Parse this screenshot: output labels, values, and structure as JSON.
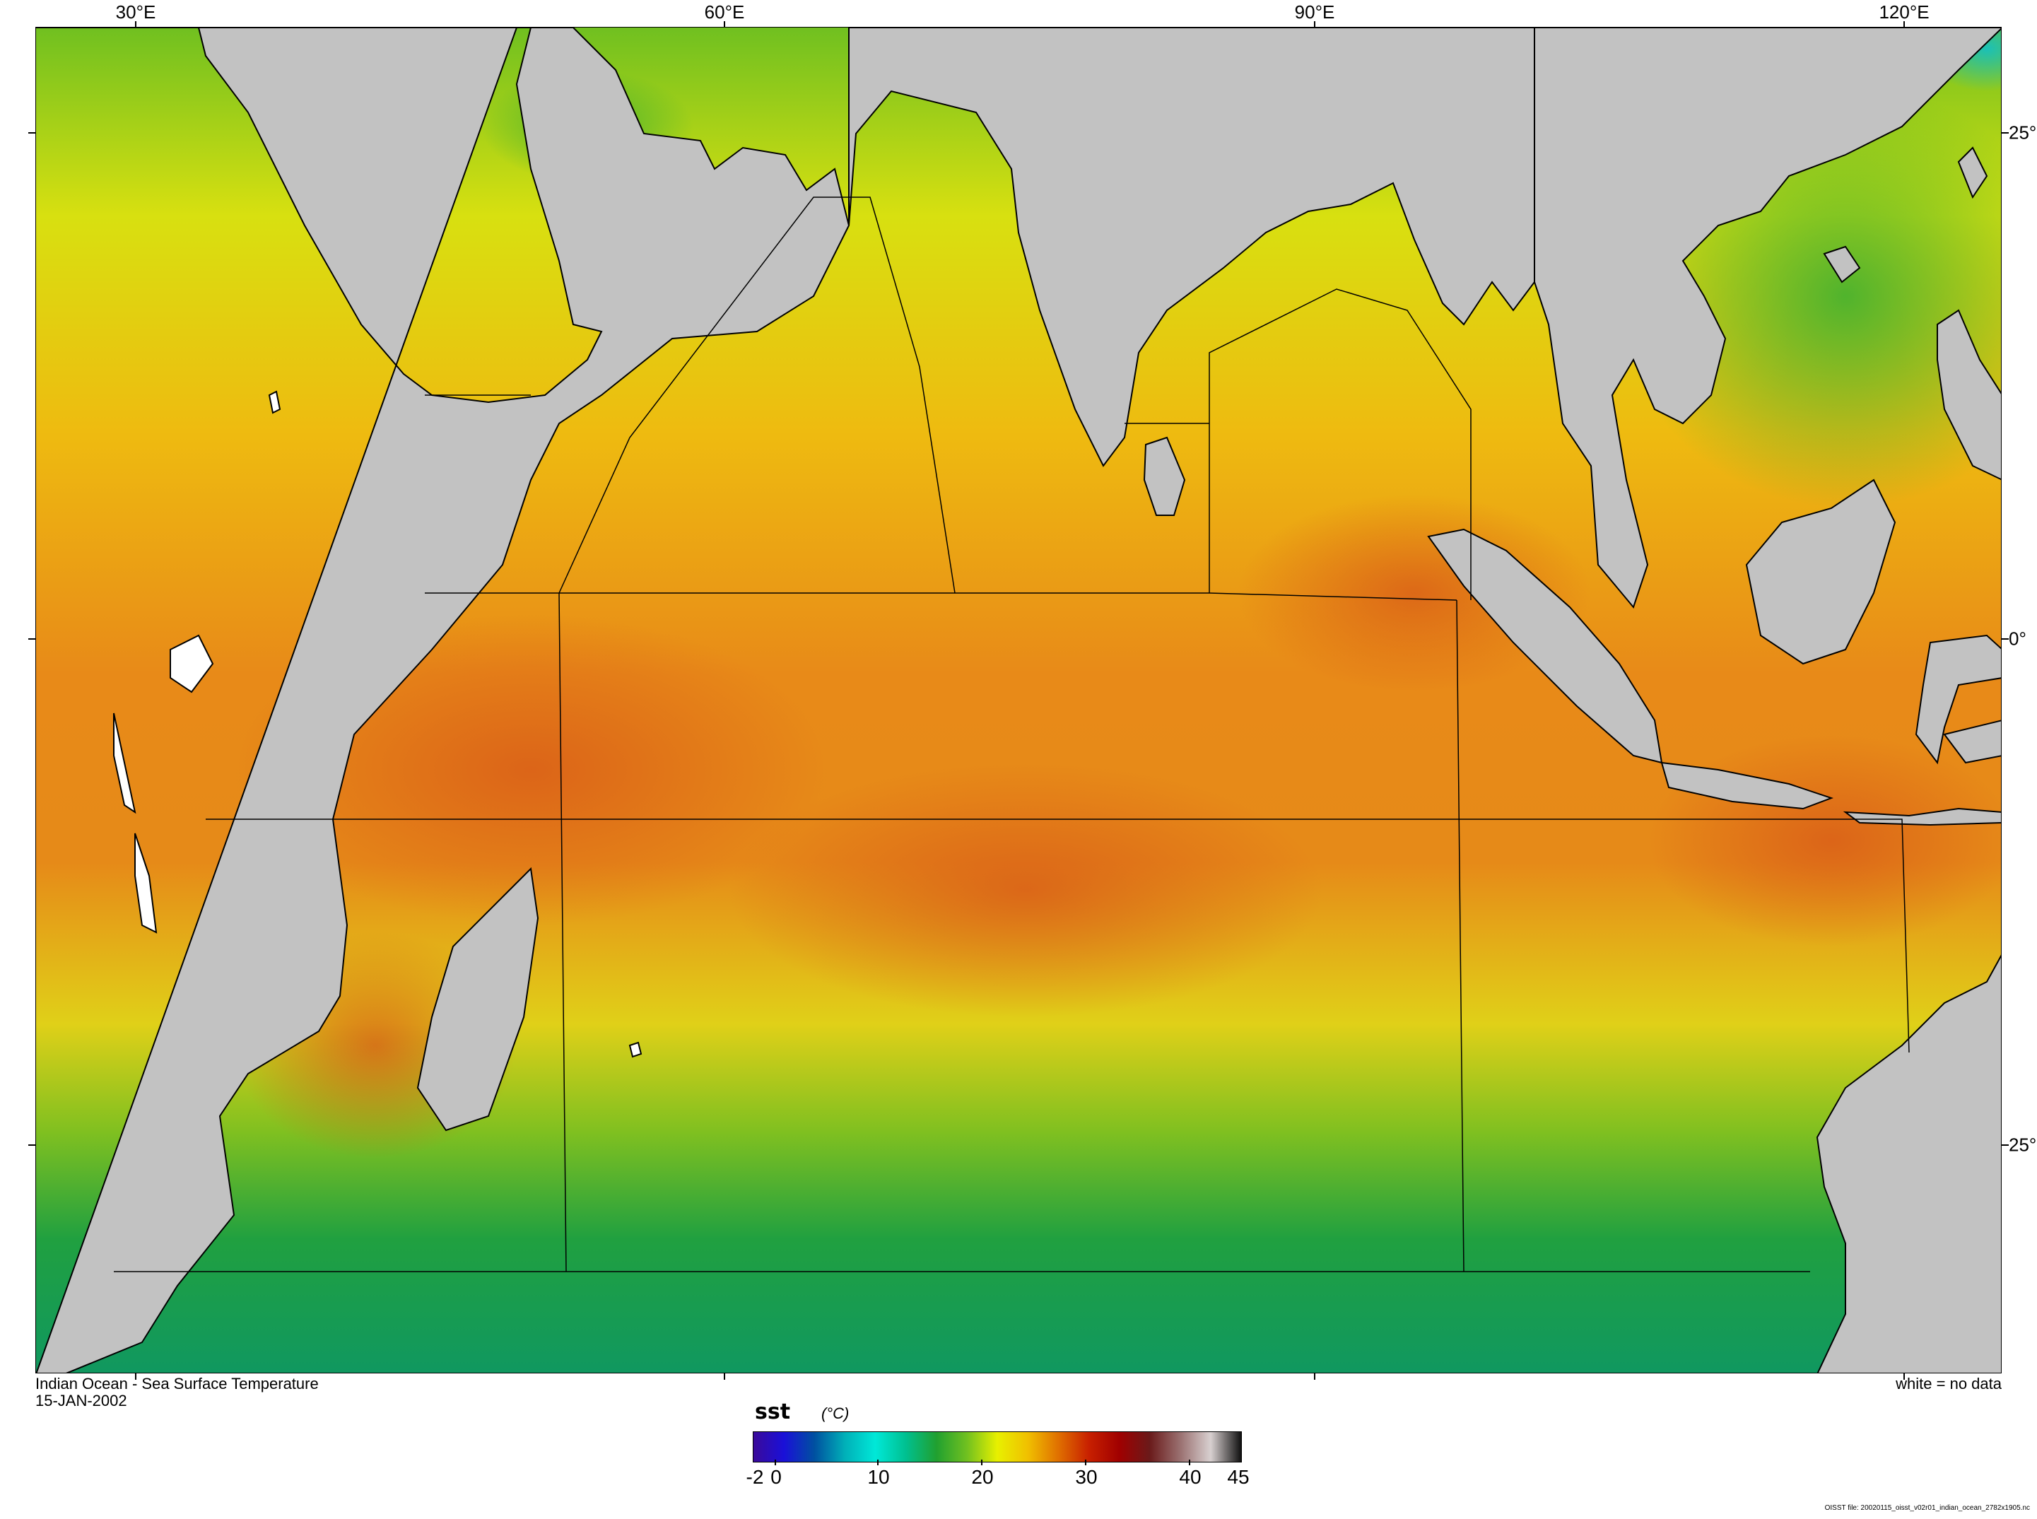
{
  "map": {
    "title": "Indian Ocean - Sea Surface Temperature",
    "date": "15-JAN-2002",
    "no_data_note": "white = no data",
    "file_note": "OISST file: 20020115_oisst_v02r01_indian_ocean_2782x1905.nc",
    "longitude_labels": [
      "30°E",
      "60°E",
      "90°E",
      "120°E"
    ],
    "latitude_labels": [
      "25°",
      "0°",
      "25°"
    ]
  },
  "colorbar": {
    "variable": "sst",
    "units": "(°C)",
    "ticks": [
      "-2",
      "0",
      "10",
      "20",
      "30",
      "40",
      "45"
    ],
    "colors": [
      "#3a0a9a",
      "#1a10d8",
      "#0050a0",
      "#00b0b8",
      "#00e8d8",
      "#00c090",
      "#20a030",
      "#70c020",
      "#e8f000",
      "#f0c000",
      "#e07000",
      "#c82000",
      "#a00000",
      "#6a1a1a",
      "#9a7070",
      "#d8d0d0",
      "#101010"
    ]
  },
  "colors": {
    "land": "#c2c2c2",
    "ocean_warm": "#e8a020",
    "ocean_cool": "#30a030"
  }
}
